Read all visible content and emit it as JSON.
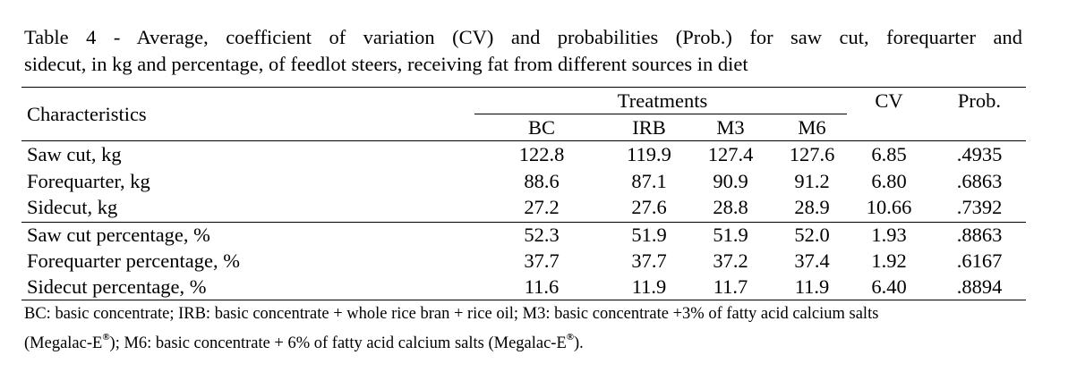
{
  "caption": {
    "line1": "Table 4 - Average, coefficient of variation (CV) and probabilities (Prob.) for saw cut, forequarter and",
    "line2": "sidecut, in kg and percentage, of feedlot steers, receiving fat from different sources in diet"
  },
  "header": {
    "characteristics": "Characteristics",
    "treatments": "Treatments",
    "cv": "CV",
    "prob": "Prob.",
    "treatment_columns": [
      "BC",
      "IRB",
      "M3",
      "M6"
    ]
  },
  "rows": [
    {
      "label": "Saw cut, kg",
      "values": [
        "122.8",
        "119.9",
        "127.4",
        "127.6",
        "6.85",
        ".4935"
      ]
    },
    {
      "label": "Forequarter, kg",
      "values": [
        "88.6",
        "87.1",
        "90.9",
        "91.2",
        "6.80",
        ".6863"
      ]
    },
    {
      "label": "Sidecut, kg",
      "values": [
        "27.2",
        "27.6",
        "28.8",
        "28.9",
        "10.66",
        ".7392"
      ]
    },
    {
      "label": "Saw cut percentage, %",
      "values": [
        "52.3",
        "51.9",
        "51.9",
        "52.0",
        "1.93",
        ".8863"
      ]
    },
    {
      "label": "Forequarter percentage, %",
      "values": [
        "37.7",
        "37.7",
        "37.2",
        "37.4",
        "1.92",
        ".6167"
      ]
    },
    {
      "label": "Sidecut percentage, %",
      "values": [
        "11.6",
        "11.9",
        "11.7",
        "11.9",
        "6.40",
        ".8894"
      ]
    }
  ],
  "footnote": {
    "line1": "BC: basic concentrate; IRB: basic concentrate + whole rice bran + rice oil; M3: basic concentrate +3% of fatty acid calcium salts",
    "line2_part1": "(Megalac-E",
    "line2_part2": "); M6: basic concentrate + 6% of fatty acid calcium salts (Megalac-E",
    "line2_part3": ").",
    "registered_mark": "®"
  }
}
